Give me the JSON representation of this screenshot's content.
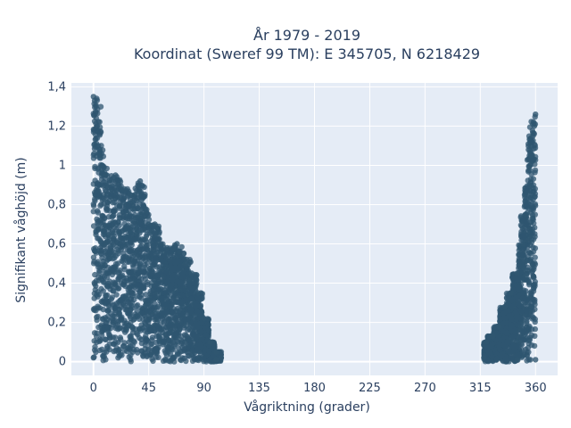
{
  "chart_data": {
    "type": "scatter",
    "title_line1": "År 1979 - 2019",
    "title_line2": "Koordinat (Sweref 99 TM): E 345705, N 6218429",
    "xlabel": "Vågriktning (grader)",
    "ylabel": "Signifikant våghöjd (m)",
    "xlim": [
      -18,
      378
    ],
    "ylim": [
      -0.07,
      1.42
    ],
    "x_ticks": [
      0,
      45,
      90,
      135,
      180,
      225,
      270,
      315,
      360
    ],
    "x_tick_labels": [
      "0",
      "45",
      "90",
      "135",
      "180",
      "225",
      "270",
      "315",
      "360"
    ],
    "y_ticks": [
      0,
      0.2,
      0.4,
      0.6,
      0.8,
      1.0,
      1.2,
      1.4
    ],
    "y_tick_labels": [
      "0",
      "0,2",
      "0,4",
      "0,6",
      "0,8",
      "1",
      "1,2",
      "1,4"
    ],
    "grid": true,
    "marker_color": "#2f5670",
    "series": [
      {
        "values": [
          {
            "x": 0,
            "y": 0.02
          },
          {
            "x": 0,
            "y": 1.35
          },
          {
            "x": 1,
            "y": 1.33
          },
          {
            "x": 2,
            "y": 1.3
          },
          {
            "x": 3,
            "y": 1.2
          },
          {
            "x": 4,
            "y": 1.1
          },
          {
            "x": 5,
            "y": 1.05
          },
          {
            "x": 7,
            "y": 1.0
          },
          {
            "x": 10,
            "y": 0.95
          },
          {
            "x": 15,
            "y": 0.93
          },
          {
            "x": 20,
            "y": 0.9
          },
          {
            "x": 25,
            "y": 0.88
          },
          {
            "x": 30,
            "y": 0.85
          },
          {
            "x": 35,
            "y": 0.82
          },
          {
            "x": 40,
            "y": 0.78
          },
          {
            "x": 45,
            "y": 0.7
          },
          {
            "x": 50,
            "y": 0.65
          },
          {
            "x": 55,
            "y": 0.6
          },
          {
            "x": 60,
            "y": 0.58
          },
          {
            "x": 65,
            "y": 0.58
          },
          {
            "x": 70,
            "y": 0.56
          },
          {
            "x": 75,
            "y": 0.5
          },
          {
            "x": 80,
            "y": 0.45
          },
          {
            "x": 85,
            "y": 0.35
          },
          {
            "x": 90,
            "y": 0.22
          },
          {
            "x": 95,
            "y": 0.1
          },
          {
            "x": 100,
            "y": 0.05
          },
          {
            "x": 104,
            "y": 0.02
          },
          {
            "x": 18,
            "y": 0.95
          },
          {
            "x": 38,
            "y": 0.92
          },
          {
            "x": 42,
            "y": 0.78
          },
          {
            "x": 50,
            "y": 0.7
          },
          {
            "x": 68,
            "y": 0.6
          },
          {
            "x": 76,
            "y": 0.52
          },
          {
            "x": 100,
            "y": 0.01
          },
          {
            "x": 318,
            "y": 0.02
          },
          {
            "x": 320,
            "y": 0.1
          },
          {
            "x": 325,
            "y": 0.13
          },
          {
            "x": 330,
            "y": 0.18
          },
          {
            "x": 335,
            "y": 0.28
          },
          {
            "x": 340,
            "y": 0.35
          },
          {
            "x": 345,
            "y": 0.45
          },
          {
            "x": 350,
            "y": 0.6
          },
          {
            "x": 352,
            "y": 0.75
          },
          {
            "x": 355,
            "y": 0.9
          },
          {
            "x": 357,
            "y": 1.05
          },
          {
            "x": 358,
            "y": 1.15
          },
          {
            "x": 359,
            "y": 1.2
          },
          {
            "x": 360,
            "y": 1.26
          },
          {
            "x": 360,
            "y": 0.01
          },
          {
            "x": 345,
            "y": 0.01
          }
        ]
      }
    ]
  }
}
